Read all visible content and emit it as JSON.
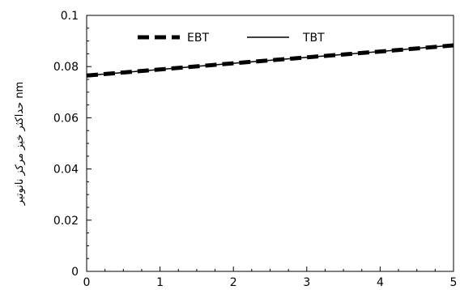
{
  "chart_data": {
    "type": "line",
    "title": "",
    "xlabel": "",
    "ylabel": "حداکثر خیز مرکز نانوتیر nm",
    "xlim": [
      0,
      5
    ],
    "ylim": [
      0,
      0.1
    ],
    "x_ticks": [
      "0",
      "1",
      "2",
      "3",
      "4",
      "5"
    ],
    "y_ticks": [
      "0",
      "0.02",
      "0.04",
      "0.06",
      "0.08",
      "0.1"
    ],
    "grid": false,
    "legend": {
      "placement": "top",
      "entries": [
        "EBT",
        "TBT"
      ]
    },
    "series": [
      {
        "name": "EBT",
        "style": "dashed-thick",
        "color": "#000000",
        "x": [
          0,
          1,
          2,
          3,
          4,
          5
        ],
        "y": [
          0.0765,
          0.0789,
          0.0813,
          0.0836,
          0.0859,
          0.0883
        ]
      },
      {
        "name": "TBT",
        "style": "solid",
        "color": "#000000",
        "x": [
          0,
          1,
          2,
          3,
          4,
          5
        ],
        "y": [
          0.0765,
          0.0789,
          0.0813,
          0.0836,
          0.0859,
          0.0884
        ]
      }
    ]
  }
}
